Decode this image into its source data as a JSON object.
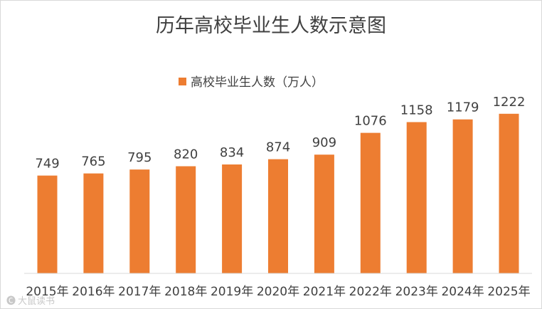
{
  "chart_data": {
    "type": "bar",
    "title": "历年高校毕业生人数示意图",
    "legend": "高校毕业生人数（万人）",
    "legend_position": "top",
    "categories": [
      "2015年",
      "2016年",
      "2017年",
      "2018年",
      "2019年",
      "2020年",
      "2021年",
      "2022年",
      "2023年",
      "2024年",
      "2025年"
    ],
    "values": [
      749,
      765,
      795,
      820,
      834,
      874,
      909,
      1076,
      1158,
      1179,
      1222
    ],
    "xlabel": "",
    "ylabel": "",
    "ylim": [
      0,
      1400
    ],
    "grid": false,
    "color": "#ED7D31"
  },
  "watermark": "大鼠读书"
}
